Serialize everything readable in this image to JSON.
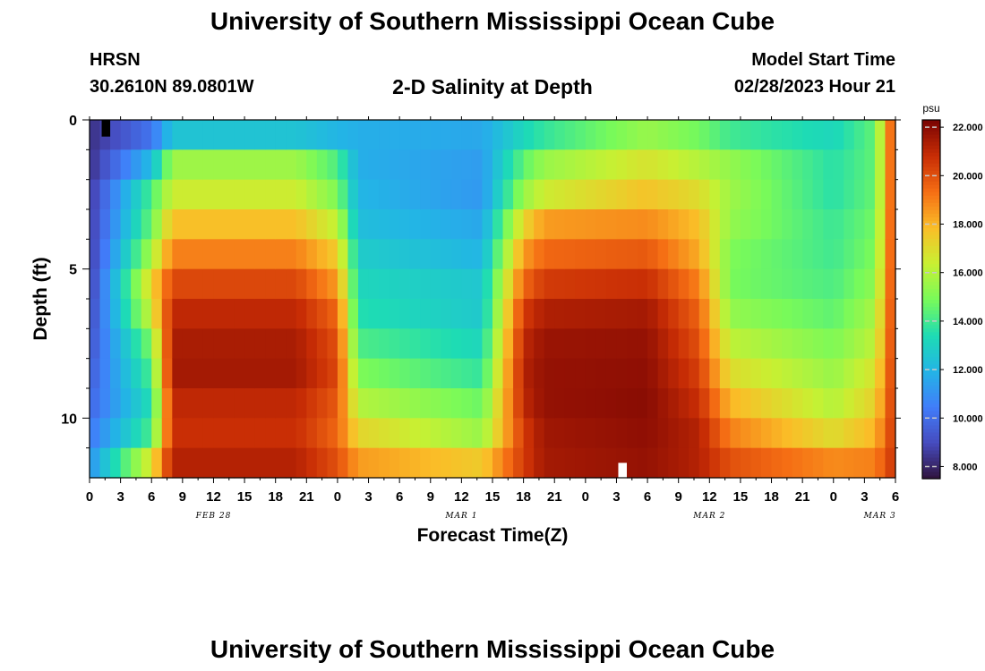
{
  "header": {
    "title": "University of Southern Mississippi Ocean Cube",
    "station": "HRSN",
    "coordinates": "30.2610N  89.0801W",
    "plot_title": "2-D Salinity at Depth",
    "model_start_label": "Model Start Time",
    "model_start_value": "02/28/2023 Hour 21"
  },
  "footer": {
    "title": "University of Southern Mississippi Ocean Cube"
  },
  "chart_data": {
    "type": "heatmap",
    "title": "2-D Salinity at Depth",
    "xlabel": "Forecast Time(Z)",
    "ylabel": "Depth (ft)",
    "x_unit": "forecast hour (Z), starting 02/28/2023 00Z",
    "xlim": [
      0,
      78
    ],
    "ylim": [
      0,
      12
    ],
    "y_inverted": true,
    "x_ticks": [
      "0",
      "3",
      "6",
      "9",
      "12",
      "15",
      "18",
      "21",
      "0",
      "3",
      "6",
      "9",
      "12",
      "15",
      "18",
      "21",
      "0",
      "3",
      "6",
      "9",
      "12",
      "15",
      "18",
      "21",
      "0",
      "3",
      "6"
    ],
    "y_ticks": [
      "0",
      "5",
      "10"
    ],
    "date_labels": [
      {
        "label": "FEB 28",
        "hour": 12
      },
      {
        "label": "MAR 1",
        "hour": 36
      },
      {
        "label": "MAR 2",
        "hour": 60
      },
      {
        "label": "MAR 3",
        "hour": 76.5
      }
    ],
    "colorbar": {
      "unit": "psu",
      "min": 7.5,
      "max": 22.3,
      "ticks": [
        "22.000",
        "20.000",
        "18.000",
        "16.000",
        "14.000",
        "12.000",
        "10.000",
        "8.000"
      ]
    },
    "depth_levels_ft": [
      0.5,
      1.5,
      2.5,
      3.5,
      4.5,
      5.5,
      6.5,
      7.5,
      8.5,
      9.5,
      10.5,
      11.5
    ],
    "time_keypoints_h": [
      0,
      6,
      8,
      20,
      24,
      26,
      38,
      42,
      44,
      54,
      59,
      62,
      72,
      76,
      78
    ],
    "salinity_profiles_psu": [
      [
        8.3,
        8.3,
        8.5,
        8.6,
        8.6,
        8.7,
        8.9,
        9.2,
        9.5,
        9.8,
        10.3,
        11.0
      ],
      [
        10.2,
        12.2,
        14.2,
        14.7,
        15.8,
        17.2,
        16.5,
        15.0,
        14.2,
        13.5,
        14.2,
        16.8
      ],
      [
        12.5,
        15.6,
        16.5,
        17.8,
        19.0,
        20.2,
        21.0,
        21.4,
        21.5,
        21.0,
        20.8,
        21.2
      ],
      [
        12.5,
        15.6,
        16.5,
        17.8,
        19.0,
        20.2,
        21.0,
        21.4,
        21.5,
        21.0,
        20.8,
        21.2
      ],
      [
        12.0,
        14.2,
        15.0,
        16.2,
        17.5,
        18.5,
        19.5,
        20.0,
        20.2,
        19.8,
        19.5,
        20.0
      ],
      [
        11.8,
        11.8,
        12.0,
        12.3,
        12.8,
        13.2,
        13.5,
        14.2,
        15.0,
        16.0,
        17.2,
        18.5
      ],
      [
        11.6,
        11.3,
        11.2,
        11.6,
        12.0,
        12.6,
        12.7,
        13.2,
        13.8,
        14.7,
        15.5,
        17.5
      ],
      [
        13.2,
        14.5,
        15.5,
        17.2,
        18.5,
        19.5,
        20.5,
        21.0,
        21.2,
        21.0,
        20.5,
        20.5
      ],
      [
        13.8,
        15.5,
        16.5,
        18.5,
        19.5,
        20.5,
        21.3,
        21.7,
        21.8,
        21.8,
        21.6,
        21.5
      ],
      [
        15.5,
        16.8,
        17.7,
        18.8,
        19.8,
        20.8,
        21.5,
        21.8,
        21.9,
        22.0,
        21.9,
        21.8
      ],
      [
        14.8,
        16.0,
        17.0,
        17.8,
        18.2,
        19.0,
        19.6,
        20.0,
        20.4,
        20.8,
        21.2,
        21.2
      ],
      [
        14.0,
        15.4,
        15.6,
        15.4,
        15.0,
        14.9,
        15.4,
        16.2,
        17.0,
        18.0,
        19.0,
        20.0
      ],
      [
        13.2,
        13.6,
        13.6,
        13.9,
        14.0,
        14.2,
        14.5,
        15.0,
        15.5,
        16.0,
        17.0,
        18.8
      ],
      [
        14.5,
        14.5,
        14.6,
        14.8,
        15.0,
        15.3,
        15.8,
        16.2,
        16.8,
        17.3,
        18.0,
        19.0
      ],
      [
        20.8,
        20.8,
        20.8,
        20.8,
        20.8,
        20.8,
        20.8,
        20.8,
        20.8,
        20.8,
        20.8,
        20.8
      ]
    ],
    "missing_cells": [
      {
        "hour": 1.5,
        "depth_ft": 0.25,
        "color": "#000000"
      },
      {
        "hour": 51.5,
        "depth_ft": 11.75,
        "color": "#ffffff"
      }
    ]
  }
}
